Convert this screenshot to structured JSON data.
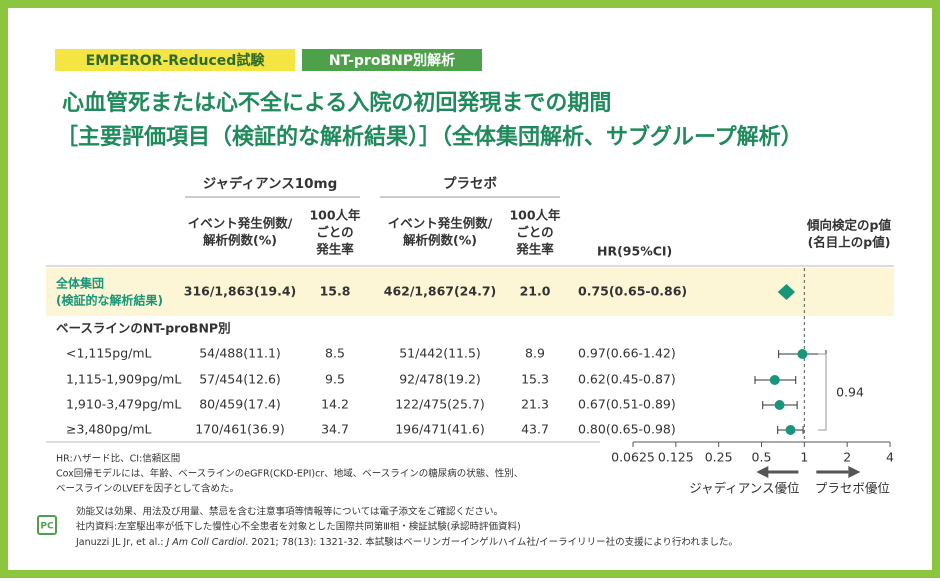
{
  "tags": [
    "EMPEROR-Reduced試験",
    "NT-proBNP別解析"
  ],
  "title": [
    "心血管死または心不全による入院の初回発現までの期間",
    "［主要評価項目（検証的な解析結果）］（全体集団解析、サブグループ解析）"
  ],
  "chart_data": {
    "type": "forest",
    "group_headers": [
      "ジャディアンス10mg",
      "プラセボ"
    ],
    "column_headers": {
      "events": [
        "イベント発生例数/",
        "解析例数(%)"
      ],
      "rate": [
        "100人年",
        "ごとの",
        "発生率"
      ],
      "hr": "HR(95%CI)",
      "p": [
        "傾向検定のp値",
        "(名目上のp値)"
      ]
    },
    "overall": {
      "label": [
        "全体集団",
        "(検証的な解析結果)"
      ],
      "drug_events": "316/1,863(19.4)",
      "drug_rate": "15.8",
      "placebo_events": "462/1,867(24.7)",
      "placebo_rate": "21.0",
      "hr_label": "0.75(0.65-0.86)",
      "hr": 0.75,
      "lo": 0.65,
      "hi": 0.86
    },
    "subgroup_title": "ベースラインのNT-proBNP別",
    "rows": [
      {
        "label": "<1,115pg/mL",
        "drug_events": "54/488(11.1)",
        "drug_rate": "8.5",
        "placebo_events": "51/442(11.5)",
        "placebo_rate": "8.9",
        "hr_label": "0.97(0.66-1.42)",
        "hr": 0.97,
        "lo": 0.66,
        "hi": 1.42
      },
      {
        "label": "1,115-1,909pg/mL",
        "drug_events": "57/454(12.6)",
        "drug_rate": "9.5",
        "placebo_events": "92/478(19.2)",
        "placebo_rate": "15.3",
        "hr_label": "0.62(0.45-0.87)",
        "hr": 0.62,
        "lo": 0.45,
        "hi": 0.87
      },
      {
        "label": "1,910-3,479pg/mL",
        "drug_events": "80/459(17.4)",
        "drug_rate": "14.2",
        "placebo_events": "122/475(25.7)",
        "placebo_rate": "21.3",
        "hr_label": "0.67(0.51-0.89)",
        "hr": 0.67,
        "lo": 0.51,
        "hi": 0.89
      },
      {
        "label": "≥3,480pg/mL",
        "drug_events": "170/461(36.9)",
        "drug_rate": "34.7",
        "placebo_events": "196/471(41.6)",
        "placebo_rate": "43.7",
        "hr_label": "0.80(0.65-0.98)",
        "hr": 0.8,
        "lo": 0.65,
        "hi": 0.98
      }
    ],
    "p_value": 0.94,
    "xlim": [
      0.0625,
      4
    ],
    "xticks": [
      0.0625,
      0.125,
      0.25,
      0.5,
      1,
      2,
      4
    ],
    "log_scale": true,
    "reference": 1,
    "x_direction_labels": [
      "ジャディアンス優位",
      "プラセボ優位"
    ],
    "color": "#17967a"
  },
  "footnotes": [
    "HR:ハザード比、CI:信頼区間",
    "Cox回帰モデルには、年齢、ベースラインのeGFR(CKD-EPI)cr、地域、ベースラインの糖尿病の状態、性別、",
    "ベースラインのLVEFを因子として含めた。"
  ],
  "notes": {
    "badge": "PC",
    "lines": [
      "効能又は効果、用法及び用量、禁忌を含む注意事項等情報等については電子添文をご確認ください。",
      "社内資料:左室駆出率が低下した慢性心不全患者を対象とした国際共同第Ⅲ相・検証試験(承認時評価資料)"
    ],
    "citation": [
      "Januzzi JL Jr, et al.: ",
      "J Am Coll Cardiol",
      ". 2021; 78(13): 1321-32. 本試験はベーリンガーインゲルハイム社/イーライリリー社の支援により行われました。"
    ]
  }
}
